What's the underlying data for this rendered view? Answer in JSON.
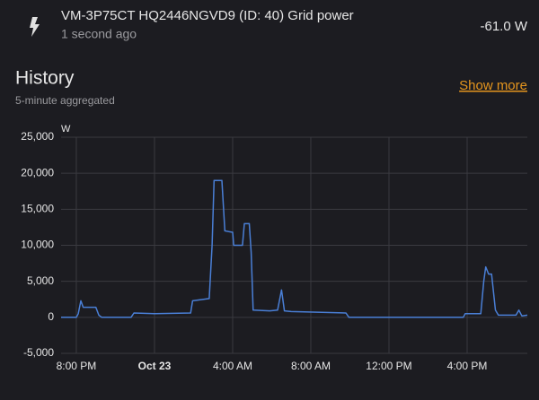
{
  "header": {
    "entity": "VM-3P75CT HQ2446NGVD9 (ID: 40) Grid power",
    "updated": "1 second ago",
    "state": "-61.0 W"
  },
  "history": {
    "title": "History",
    "subtitle": "5-minute aggregated",
    "link": "Show more"
  },
  "chart_data": {
    "type": "line",
    "y_label": "W",
    "x": [
      19.22,
      20.0,
      20.1,
      20.23,
      20.35,
      21.0,
      21.15,
      21.3,
      22.8,
      22.95,
      24.0,
      25.85,
      25.95,
      26.8,
      26.95,
      27.05,
      27.45,
      27.6,
      28.0,
      28.05,
      28.5,
      28.6,
      28.85,
      28.95,
      29.05,
      29.9,
      30.3,
      30.5,
      30.65,
      31.0,
      33.8,
      33.95,
      39.8,
      39.9,
      40.7,
      40.85,
      40.95,
      41.1,
      41.25,
      41.45,
      41.6,
      42.5,
      42.65,
      42.8,
      43.08
    ],
    "series": [
      {
        "name": "Grid power",
        "color": "#4a7fd6",
        "values": [
          0,
          0,
          500,
          2300,
          1400,
          1400,
          300,
          0,
          0,
          600,
          500,
          600,
          2300,
          2600,
          10000,
          19000,
          19000,
          12000,
          11800,
          10000,
          10000,
          13000,
          13000,
          9000,
          1000,
          900,
          1000,
          3800,
          900,
          800,
          600,
          0,
          0,
          500,
          500,
          5000,
          7000,
          6000,
          6000,
          1000,
          300,
          300,
          1000,
          200,
          300
        ]
      }
    ],
    "xlim": [
      19.22,
      43.08
    ],
    "xticks": [
      {
        "value": 20,
        "label": "8:00 PM"
      },
      {
        "value": 24,
        "label": "Oct 23"
      },
      {
        "value": 28,
        "label": "4:00 AM"
      },
      {
        "value": 32,
        "label": "8:00 AM"
      },
      {
        "value": 36,
        "label": "12:00 PM"
      },
      {
        "value": 40,
        "label": "4:00 PM"
      }
    ],
    "ylim": [
      -5000,
      25000
    ],
    "yticks": [
      {
        "value": -5000,
        "label": "-5,000"
      },
      0,
      {
        "value": 5000,
        "label": "5,000"
      },
      {
        "value": 10000,
        "label": "10,000"
      },
      {
        "value": 15000,
        "label": "15,000"
      },
      {
        "value": 20000,
        "label": "20,000"
      },
      {
        "value": 25000,
        "label": "25,000"
      }
    ],
    "grid": true
  }
}
